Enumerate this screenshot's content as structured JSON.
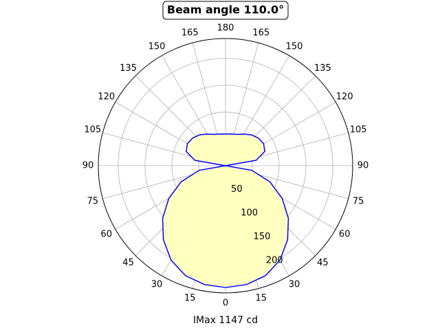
{
  "chart_data": {
    "type": "polar",
    "title": "Beam angle 110.0°",
    "xlabel": "IMax 1147 cd",
    "x": [
      0,
      10,
      20,
      30,
      40,
      50,
      60,
      70,
      80,
      90,
      100,
      110,
      120,
      130,
      140,
      150,
      160,
      170,
      180
    ],
    "series": [
      {
        "color": "#0000ff",
        "fill": "#ffffc0",
        "values": [
          227,
          225,
          218,
          203,
          180,
          153,
          122,
          88,
          50,
          0,
          58,
          78,
          82,
          80,
          75,
          68,
          62,
          60,
          59
        ]
      }
    ],
    "ylim": [
      0,
      237
    ],
    "yticks": [
      50,
      100,
      150,
      200
    ],
    "xticks": [
      0,
      15,
      30,
      45,
      60,
      75,
      90,
      105,
      120,
      135,
      150,
      165,
      180,
      {
        "value": 195,
        "label": "165"
      },
      {
        "value": 210,
        "label": "150"
      },
      {
        "value": 225,
        "label": "135"
      },
      {
        "value": 240,
        "label": "120"
      },
      {
        "value": 255,
        "label": "105"
      },
      {
        "value": 270,
        "label": "90"
      },
      {
        "value": 285,
        "label": "75"
      },
      {
        "value": 300,
        "label": "60"
      },
      {
        "value": 315,
        "label": "45"
      },
      {
        "value": 330,
        "label": "30"
      },
      {
        "value": 345,
        "label": "15"
      }
    ],
    "grid": true
  }
}
